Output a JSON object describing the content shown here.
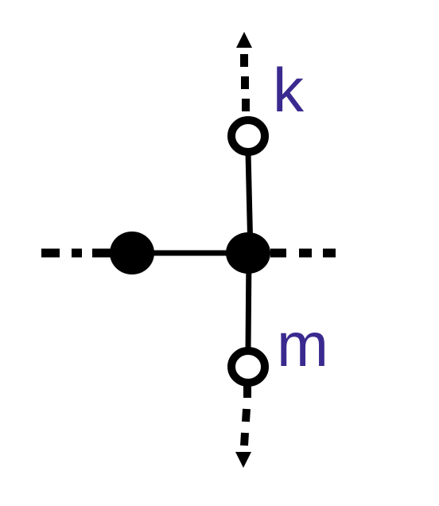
{
  "diagram": {
    "labels": {
      "k": "k",
      "m": "m"
    },
    "colors": {
      "stroke": "#000000",
      "label": "#3a2a8f",
      "background": "#ffffff"
    },
    "nodes": [
      {
        "id": "left-node",
        "style": "filled"
      },
      {
        "id": "center-node",
        "style": "filled"
      },
      {
        "id": "top-node",
        "style": "open",
        "label": "k"
      },
      {
        "id": "bottom-node",
        "style": "open",
        "label": "m"
      }
    ],
    "edges": [
      {
        "from": "left-node",
        "to": "center-node",
        "style": "solid"
      },
      {
        "from": "center-node",
        "to": "top-node",
        "style": "solid"
      },
      {
        "from": "center-node",
        "to": "bottom-node",
        "style": "solid"
      },
      {
        "from": "left-node",
        "to": "left-edge",
        "style": "dashed"
      },
      {
        "from": "center-node",
        "to": "right-edge",
        "style": "dashed"
      },
      {
        "from": "top-node",
        "to": "up-arrow",
        "style": "dashed-arrow"
      },
      {
        "from": "bottom-node",
        "to": "down-arrow",
        "style": "dashed-arrow"
      }
    ]
  }
}
